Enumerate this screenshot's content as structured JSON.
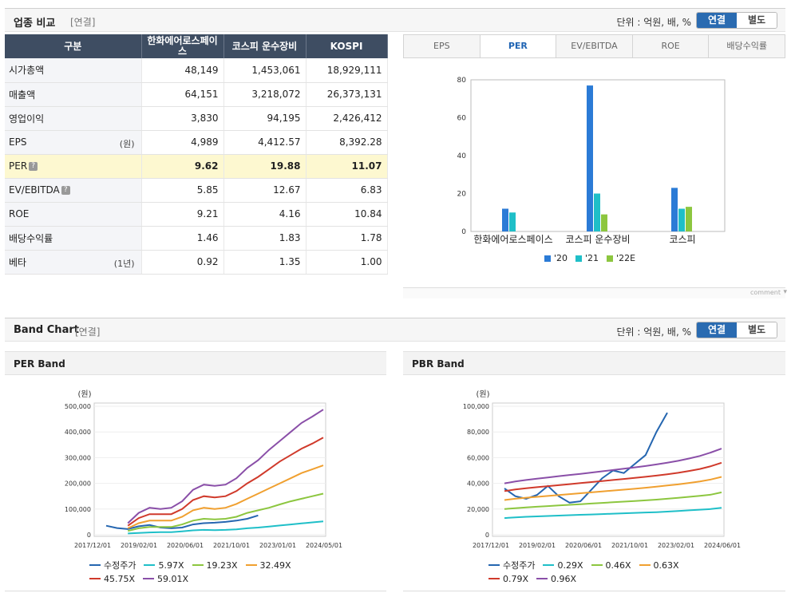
{
  "section1": {
    "title": "업종 비교",
    "sub": "[연결]",
    "unit": "단위 : 억원, 배, %",
    "toggle": [
      "연결",
      "별도"
    ]
  },
  "table": {
    "headers": [
      "구분",
      "한화에어로스페이스",
      "코스피 운수장비",
      "KOSPI"
    ],
    "rows": [
      {
        "label": "시가총액",
        "unit": "",
        "values": [
          "48,149",
          "1,453,061",
          "18,929,111"
        ]
      },
      {
        "label": "매출액",
        "unit": "",
        "values": [
          "64,151",
          "3,218,072",
          "26,373,131"
        ]
      },
      {
        "label": "영업이익",
        "unit": "",
        "values": [
          "3,830",
          "94,195",
          "2,426,412"
        ]
      },
      {
        "label": "EPS",
        "unit": "(원)",
        "values": [
          "4,989",
          "4,412.57",
          "8,392.28"
        ]
      },
      {
        "label": "PER",
        "unit": "",
        "values": [
          "9.62",
          "19.88",
          "11.07"
        ]
      },
      {
        "label": "EV/EBITDA",
        "unit": "",
        "values": [
          "5.85",
          "12.67",
          "6.83"
        ]
      },
      {
        "label": "ROE",
        "unit": "",
        "values": [
          "9.21",
          "4.16",
          "10.84"
        ]
      },
      {
        "label": "배당수익률",
        "unit": "",
        "values": [
          "1.46",
          "1.83",
          "1.78"
        ]
      },
      {
        "label": "베타",
        "unit": "(1년)",
        "values": [
          "0.92",
          "1.35",
          "1.00"
        ]
      }
    ]
  },
  "tabs": [
    "EPS",
    "PER",
    "EV/EBITDA",
    "ROE",
    "배당수익률"
  ],
  "comment": "comment",
  "section2": {
    "title": "Band Chart",
    "sub": "[연결]",
    "unit": "단위 : 억원, 배, %",
    "toggle": [
      "연결",
      "별도"
    ]
  },
  "chart_data": [
    {
      "type": "bar",
      "categories": [
        "한화에어로스페이스",
        "코스피 운수장비",
        "코스피"
      ],
      "series": [
        {
          "name": "'20",
          "color": "#2b7bd6",
          "values": [
            12,
            77,
            23
          ]
        },
        {
          "name": "'21",
          "color": "#1fbfc8",
          "values": [
            10,
            20,
            12
          ]
        },
        {
          "name": "'22E",
          "color": "#8cc63f",
          "values": [
            null,
            9,
            13
          ]
        }
      ],
      "ylim": [
        0,
        80
      ],
      "yticks": [
        0,
        20,
        40,
        60,
        80
      ]
    },
    {
      "type": "line",
      "title": "PER Band",
      "ylabel": "(원)",
      "xticks": [
        "2017/12/01",
        "2019/02/01",
        "2020/06/01",
        "2021/10/01",
        "2023/01/01",
        "2024/05/01"
      ],
      "yticks": [
        "0",
        "100,000",
        "200,000",
        "300,000",
        "400,000",
        "500,000"
      ],
      "ylim": [
        0,
        500000
      ],
      "x": [
        0,
        5,
        10,
        15,
        20,
        25,
        30,
        35,
        40,
        45,
        50,
        55,
        60,
        65,
        70,
        75,
        80,
        85,
        90,
        95,
        100
      ],
      "series": [
        {
          "name": "수정주가",
          "color": "#2566b0",
          "values": [
            35000,
            26000,
            22000,
            33000,
            38000,
            28000,
            25000,
            28000,
            40000,
            45000,
            47000,
            50000,
            55000,
            62000,
            75000,
            null,
            null,
            null,
            null,
            null,
            null
          ]
        },
        {
          "name": "5.97X",
          "color": "#1fbfc8",
          "values": [
            null,
            null,
            5000,
            7000,
            9000,
            10000,
            10000,
            13000,
            17000,
            19000,
            18000,
            19000,
            21000,
            25000,
            28000,
            32000,
            36000,
            40000,
            44000,
            48000,
            52000
          ]
        },
        {
          "name": "19.23X",
          "color": "#8cc63f",
          "values": [
            null,
            null,
            15000,
            25000,
            30000,
            30000,
            30000,
            40000,
            55000,
            62000,
            60000,
            62000,
            70000,
            85000,
            95000,
            105000,
            118000,
            130000,
            140000,
            150000,
            160000
          ]
        },
        {
          "name": "32.49X",
          "color": "#f0a030",
          "values": [
            null,
            null,
            25000,
            45000,
            55000,
            55000,
            55000,
            70000,
            95000,
            105000,
            100000,
            105000,
            120000,
            140000,
            160000,
            180000,
            200000,
            220000,
            240000,
            255000,
            270000
          ]
        },
        {
          "name": "45.75X",
          "color": "#d03a2b",
          "values": [
            null,
            null,
            35000,
            65000,
            80000,
            80000,
            80000,
            100000,
            135000,
            150000,
            145000,
            150000,
            170000,
            200000,
            225000,
            255000,
            285000,
            310000,
            335000,
            355000,
            378000
          ]
        },
        {
          "name": "59.01X",
          "color": "#8a4fa8",
          "values": [
            null,
            null,
            45000,
            85000,
            105000,
            100000,
            105000,
            130000,
            175000,
            195000,
            190000,
            195000,
            220000,
            260000,
            290000,
            330000,
            365000,
            400000,
            435000,
            460000,
            487000
          ]
        }
      ]
    },
    {
      "type": "line",
      "title": "PBR Band",
      "ylabel": "(원)",
      "xticks": [
        "2017/12/01",
        "2019/02/01",
        "2020/06/01",
        "2021/10/01",
        "2023/02/01",
        "2024/06/01"
      ],
      "yticks": [
        "0",
        "20,000",
        "40,000",
        "60,000",
        "80,000",
        "100,000"
      ],
      "ylim": [
        0,
        100000
      ],
      "x": [
        0,
        5,
        10,
        15,
        20,
        25,
        30,
        35,
        40,
        45,
        50,
        55,
        60,
        65,
        70,
        75,
        80,
        85,
        90,
        95,
        100
      ],
      "series": [
        {
          "name": "수정주가",
          "color": "#2566b0",
          "values": [
            36000,
            30000,
            28000,
            31000,
            38000,
            30000,
            25000,
            26000,
            35000,
            44000,
            50000,
            48000,
            55000,
            62000,
            80000,
            95000,
            null,
            null,
            null,
            null,
            null
          ]
        },
        {
          "name": "0.29X",
          "color": "#1fbfc8",
          "values": [
            13000,
            13500,
            14000,
            14300,
            14600,
            14900,
            15200,
            15500,
            15800,
            16100,
            16400,
            16700,
            17000,
            17300,
            17600,
            18000,
            18500,
            19000,
            19500,
            20000,
            21000
          ]
        },
        {
          "name": "0.46X",
          "color": "#8cc63f",
          "values": [
            20000,
            20700,
            21300,
            21800,
            22300,
            22800,
            23300,
            23800,
            24300,
            24800,
            25300,
            25800,
            26300,
            26800,
            27300,
            28000,
            28700,
            29500,
            30300,
            31200,
            33000
          ]
        },
        {
          "name": "0.63X",
          "color": "#f0a030",
          "values": [
            27000,
            28000,
            28800,
            29500,
            30200,
            30900,
            31600,
            32300,
            33000,
            33700,
            34400,
            35100,
            35800,
            36600,
            37400,
            38300,
            39200,
            40300,
            41500,
            43000,
            45000
          ]
        },
        {
          "name": "0.79X",
          "color": "#d03a2b",
          "values": [
            34000,
            35200,
            36200,
            37000,
            37800,
            38600,
            39400,
            40200,
            41000,
            41800,
            42600,
            43400,
            44200,
            45100,
            46000,
            47000,
            48200,
            49600,
            51200,
            53300,
            56000
          ]
        },
        {
          "name": "0.96X",
          "color": "#8a4fa8",
          "values": [
            40000,
            41400,
            42600,
            43600,
            44600,
            45600,
            46500,
            47400,
            48400,
            49400,
            50400,
            51400,
            52400,
            53500,
            54700,
            56000,
            57500,
            59300,
            61300,
            64000,
            67000
          ]
        }
      ]
    }
  ]
}
